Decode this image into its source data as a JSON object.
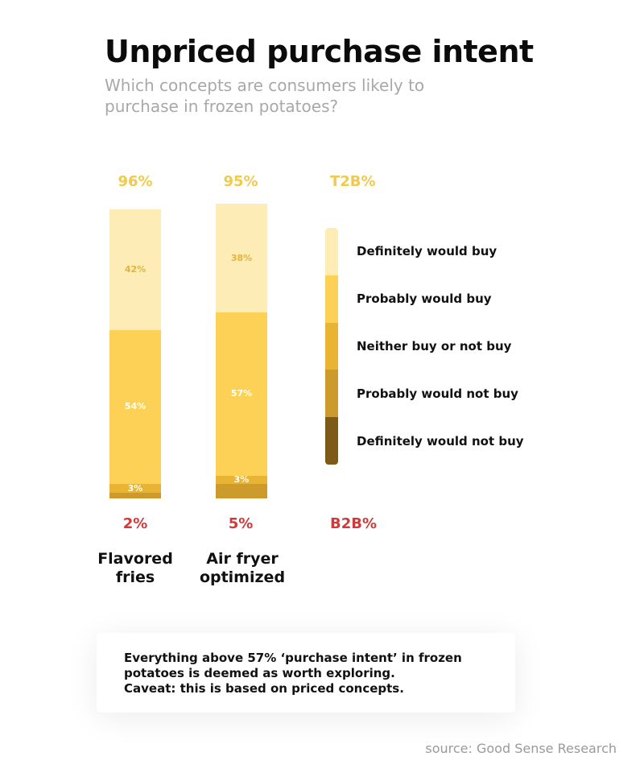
{
  "header": {
    "title": "Unpriced purchase intent",
    "subtitle": "Which concepts are consumers likely to purchase in frozen potatoes?"
  },
  "legend_headers": {
    "t2b": "T2B%",
    "b2b": "B2B%"
  },
  "colors": {
    "definitely_would_buy": "#fdecb6",
    "probably_would_buy": "#fcd155",
    "neither": "#e9b433",
    "probably_would_not_buy": "#cc9b2c",
    "definitely_would_not_buy": "#7d5a17",
    "t2b_text": "#f2c94c",
    "b2b_text": "#cf3b3b"
  },
  "chart_data": {
    "type": "bar",
    "stacked": true,
    "categories": [
      "Flavored fries",
      "Air fryer optimized"
    ],
    "category_lines": [
      [
        "Flavored",
        "fries"
      ],
      [
        "Air fryer",
        "optimized"
      ]
    ],
    "series": [
      {
        "name": "Definitely would buy",
        "values": [
          42,
          38
        ],
        "labels": [
          "42%",
          "38%"
        ]
      },
      {
        "name": "Probably would buy",
        "values": [
          54,
          57
        ],
        "labels": [
          "54%",
          "57%"
        ]
      },
      {
        "name": "Neither buy or not buy",
        "values": [
          3,
          3
        ],
        "labels": [
          "3%",
          "3%"
        ]
      },
      {
        "name": "Probably would not buy",
        "values": [
          2,
          5
        ],
        "labels": [
          "",
          ""
        ]
      },
      {
        "name": "Definitely would not buy",
        "values": [
          0,
          0
        ],
        "labels": [
          "",
          ""
        ]
      }
    ],
    "t2b": [
      "96%",
      "95%"
    ],
    "b2b": [
      "2%",
      "5%"
    ],
    "legend_placement": "right",
    "grid": false
  },
  "note": {
    "lines": [
      "Everything above 57% ‘purchase intent’ in frozen",
      "potatoes is deemed as worth exploring.",
      "Caveat: this is based on priced concepts."
    ]
  },
  "source": "source: Good Sense Research"
}
